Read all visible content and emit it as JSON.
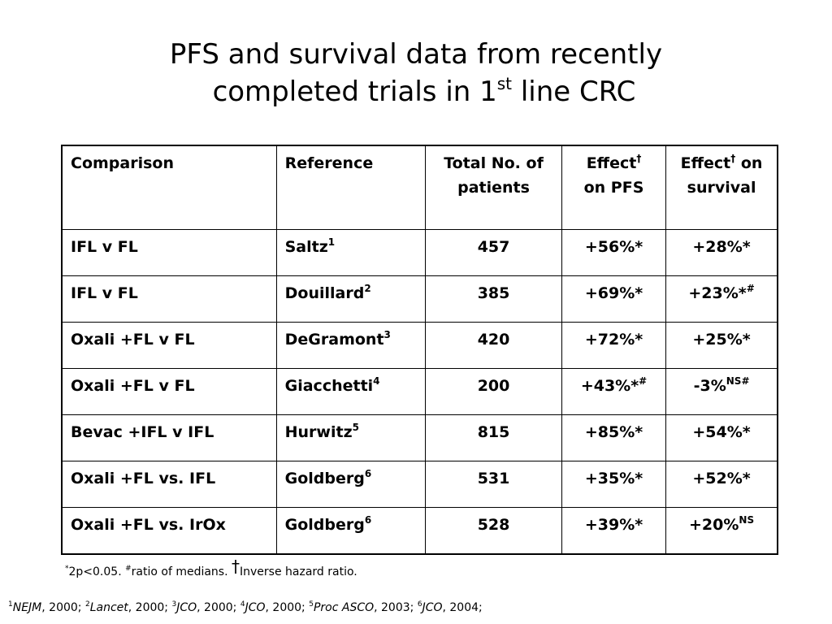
{
  "title": {
    "line1": "PFS and survival data from recently",
    "line2_pre": "completed trials in 1",
    "line2_sup": "st",
    "line2_post": " line CRC"
  },
  "table": {
    "headers": {
      "comparison": "Comparison",
      "reference": "Reference",
      "total": "Total No. of patients",
      "pfs_pre": "Effect",
      "pfs_sup": "†",
      "pfs_post": "on PFS",
      "surv_pre": "Effect",
      "surv_sup": "†",
      "surv_post": "on survival"
    },
    "rows": [
      {
        "comparison": "IFL v FL",
        "ref": "Saltz",
        "ref_sup": "1",
        "total": "457",
        "pfs": "+56%*",
        "pfs_sup": "",
        "surv": "+28%*",
        "surv_sup": ""
      },
      {
        "comparison": "IFL v FL",
        "ref": "Douillard",
        "ref_sup": "2",
        "total": "385",
        "pfs": "+69%*",
        "pfs_sup": "",
        "surv": "+23%*",
        "surv_sup": "#"
      },
      {
        "comparison": "Oxali +FL v FL",
        "ref": "DeGramont",
        "ref_sup": "3",
        "total": "420",
        "pfs": "+72%*",
        "pfs_sup": "",
        "surv": "+25%*",
        "surv_sup": ""
      },
      {
        "comparison": "Oxali +FL v FL",
        "ref": "Giacchetti",
        "ref_sup": "4",
        "total": "200",
        "pfs": "+43%*",
        "pfs_sup": "#",
        "surv": "-3%",
        "surv_sup": "NS#"
      },
      {
        "comparison": "Bevac +IFL v IFL",
        "ref": "Hurwitz",
        "ref_sup": "5",
        "total": "815",
        "pfs": "+85%*",
        "pfs_sup": "",
        "surv": "+54%*",
        "surv_sup": ""
      },
      {
        "comparison": "Oxali +FL vs. IFL",
        "ref": "Goldberg",
        "ref_sup": "6",
        "total": "531",
        "pfs": "+35%*",
        "pfs_sup": "",
        "surv": "+52%*",
        "surv_sup": ""
      },
      {
        "comparison": "Oxali +FL vs. IrOx",
        "ref": "Goldberg",
        "ref_sup": "6",
        "total": "528",
        "pfs": "+39%*",
        "pfs_sup": "",
        "surv": "+20%",
        "surv_sup": "NS"
      }
    ]
  },
  "footnote": {
    "s1": "*",
    "t1": "2p<0.05.  ",
    "s2": "#",
    "t2": "ratio of medians. ",
    "dagger": "†",
    "t3": "Inverse hazard ratio."
  },
  "refs": [
    {
      "sup": "1",
      "text": "NEJM",
      "year": ", 2000; "
    },
    {
      "sup": "2",
      "text": "Lancet",
      "year": ", 2000; "
    },
    {
      "sup": "3",
      "text": "JCO",
      "year": ", 2000; "
    },
    {
      "sup": "4",
      "text": "JCO",
      "year": ", 2000; "
    },
    {
      "sup": "5",
      "text": "Proc ASCO",
      "year": ", 2003; "
    },
    {
      "sup": "6",
      "text": "JCO",
      "year": ", 2004;"
    }
  ]
}
